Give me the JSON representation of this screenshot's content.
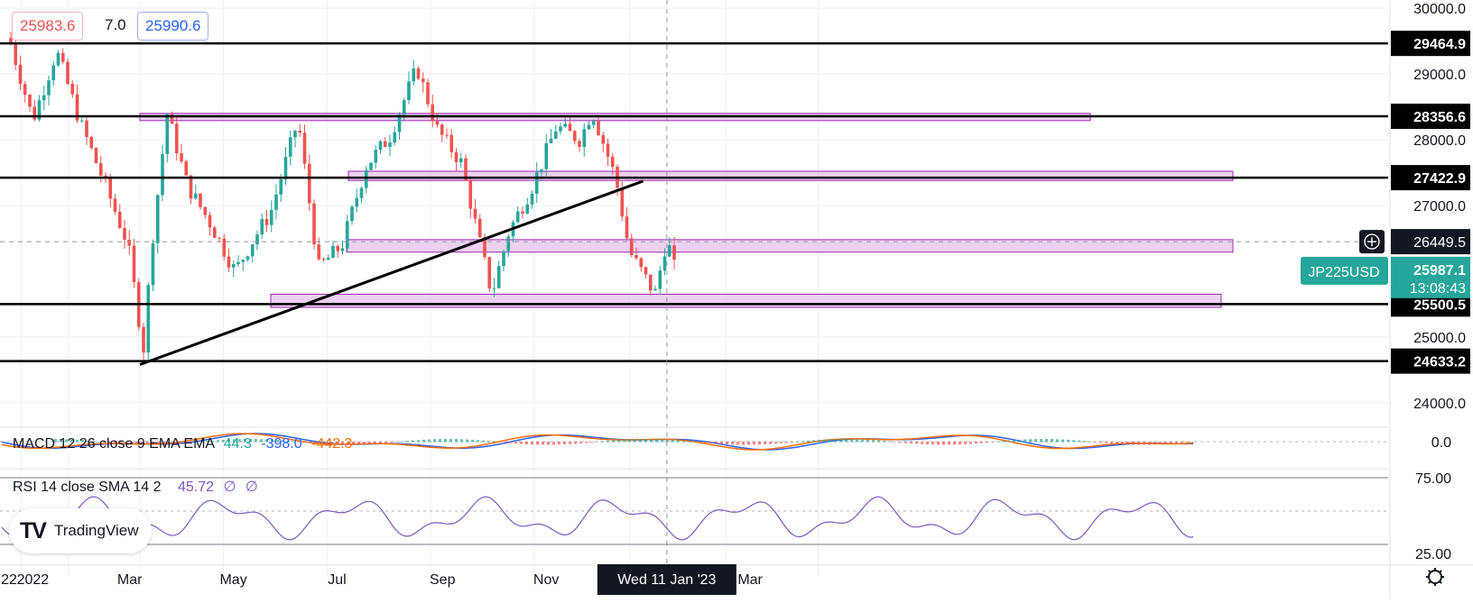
{
  "legend": {
    "bid": "25983.6",
    "spread": "7.0",
    "ask": "25990.6"
  },
  "brand": {
    "name": "TradingView"
  },
  "colors": {
    "up": "#26a69a",
    "down": "#ef5350",
    "zone_fill": "#e6c2ec",
    "zone_stroke": "#9c27b0",
    "macd_line": "#2962ff",
    "signal_line": "#ff6d00",
    "rsi_line": "#7e57c2",
    "symbol_badge": "#26a69a"
  },
  "price_scale": {
    "ticks": [
      "30000.0",
      "29000.0",
      "28000.0",
      "27000.0",
      "25000.0",
      "24000.0"
    ],
    "level_labels": [
      "29464.9",
      "28356.6",
      "27422.9",
      "25500.5",
      "24633.2"
    ],
    "crosshair_label": "26449.5",
    "symbol_label": "JP225USD",
    "last_price": "25987.1",
    "countdown": "13:08:43"
  },
  "time_scale": {
    "ticks": [
      "22",
      "2022",
      "Mar",
      "May",
      "Jul",
      "Sep",
      "Nov",
      "Mar"
    ],
    "crosshair_label": "Wed 11 Jan '23"
  },
  "macd": {
    "title": "MACD 12 26 close 9 EMA EMA",
    "hist_value": "44.3",
    "macd_value": "-398.0",
    "signal_value": "-442.3",
    "scale_label": "0.0"
  },
  "rsi": {
    "title": "RSI 14 close SMA 14 2",
    "value": "45.72",
    "na1": "∅",
    "na2": "∅",
    "upper": "75.00",
    "lower": "25.00"
  },
  "chart_data": {
    "type": "line",
    "title": "",
    "symbol": "JP225USD",
    "xlabel": "",
    "ylabel": "",
    "ylim": [
      23800,
      30000
    ],
    "grid": true,
    "x": [
      "2021-12-20",
      "2022-01-03",
      "2022-01-17",
      "2022-01-31",
      "2022-02-14",
      "2022-02-28",
      "2022-03-09",
      "2022-03-14",
      "2022-03-23",
      "2022-04-04",
      "2022-04-18",
      "2022-05-02",
      "2022-05-12",
      "2022-05-23",
      "2022-06-08",
      "2022-06-20",
      "2022-07-04",
      "2022-07-18",
      "2022-08-01",
      "2022-08-17",
      "2022-08-29",
      "2022-09-12",
      "2022-09-30",
      "2022-10-10",
      "2022-10-24",
      "2022-11-07",
      "2022-11-21",
      "2022-11-28",
      "2022-12-12",
      "2022-12-20",
      "2023-01-04",
      "2023-01-11",
      "2023-01-16"
    ],
    "series": [
      {
        "values": [
          29550,
          28300,
          29350,
          28250,
          27350,
          26400,
          24800,
          26400,
          28400,
          27300,
          26700,
          26000,
          26450,
          26900,
          28300,
          26050,
          26400,
          27600,
          28050,
          29100,
          28150,
          27650,
          25650,
          26600,
          27300,
          28200,
          28000,
          28450,
          27400,
          26300,
          25650,
          26500,
          25987.1
        ]
      }
    ],
    "horizontal_levels": [
      29464.9,
      28356.6,
      27422.9,
      25500.5,
      24633.2
    ],
    "zones": [
      [
        28300,
        28400
      ],
      [
        27380,
        27520
      ],
      [
        26290,
        26480
      ],
      [
        25450,
        25650
      ]
    ],
    "trendline": [
      [
        "2022-03-07",
        24580
      ],
      [
        "2022-12-28",
        27370
      ]
    ],
    "crosshair": {
      "date": "2023-01-11",
      "price": 26449.5
    },
    "macd": {
      "macd": -398.0,
      "signal": -442.3,
      "histogram": 44.3
    },
    "rsi": {
      "value": 45.72,
      "bands": [
        75.0,
        25.0
      ]
    }
  }
}
